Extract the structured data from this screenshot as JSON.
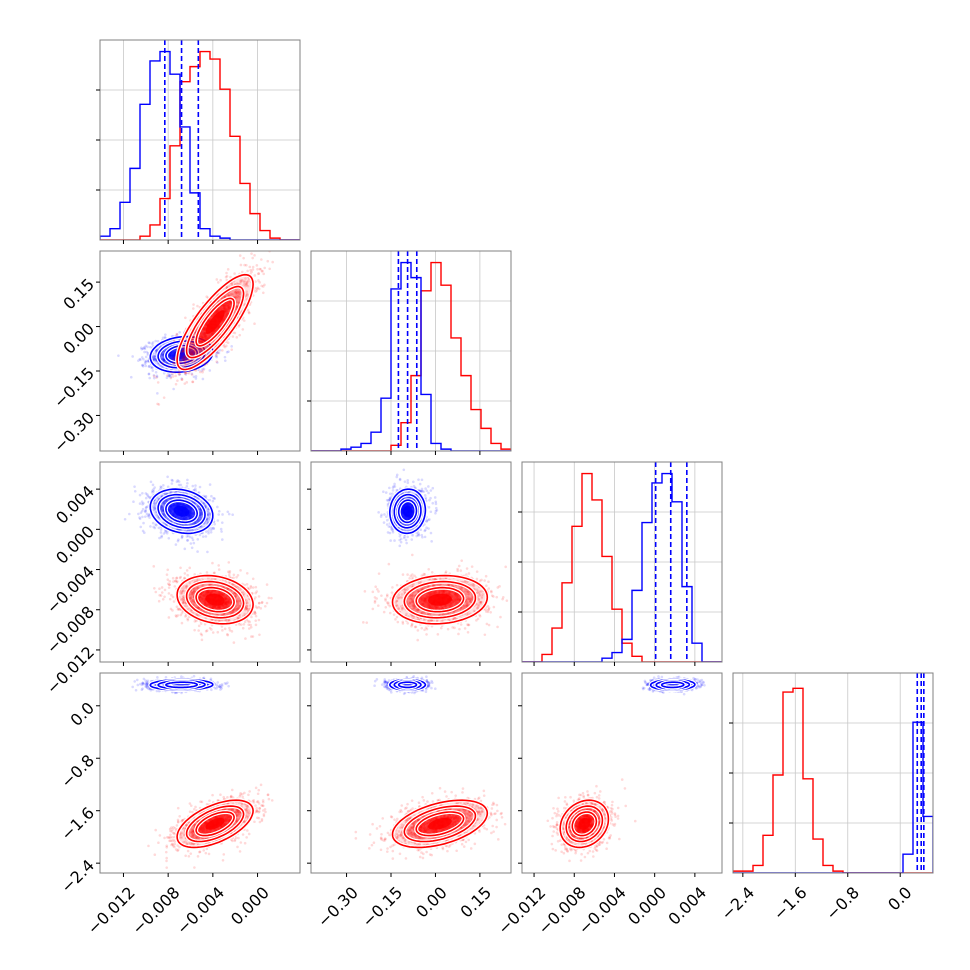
{
  "chart_data": {
    "type": "corner",
    "title": "",
    "grid": true,
    "colors": {
      "blue": "#0000ff",
      "red": "#ff0000"
    },
    "dimensions": [
      {
        "index": 0,
        "range": [
          -0.0141,
          0.0038
        ],
        "ticks": [
          -0.012,
          -0.008,
          -0.004,
          0.0
        ],
        "tick_labels": [
          "−0.012",
          "−0.008",
          "−0.004",
          "0.000"
        ]
      },
      {
        "index": 1,
        "range": [
          -0.42,
          0.255
        ],
        "ticks": [
          -0.3,
          -0.15,
          0.0,
          0.15
        ],
        "tick_labels": [
          "−0.30",
          "−0.15",
          "0.00",
          "0.15"
        ]
      },
      {
        "index": 2,
        "range": [
          -0.0132,
          0.0067
        ],
        "ticks": [
          -0.012,
          -0.008,
          -0.004,
          0.0,
          0.004
        ],
        "tick_labels": [
          "−0.012",
          "−0.008",
          "−0.004",
          "0.000",
          "0.004"
        ]
      },
      {
        "index": 3,
        "range": [
          -2.55,
          0.5
        ],
        "ticks": [
          -2.4,
          -1.6,
          -0.8,
          0.0
        ],
        "tick_labels": [
          "−2.4",
          "−1.6",
          "−0.8",
          "0.0"
        ]
      }
    ],
    "series": [
      {
        "color": "blue",
        "means": [
          -0.0068,
          -0.094,
          0.0018,
          0.32
        ],
        "stds": [
          0.0014,
          0.03,
          0.0011,
          0.04
        ],
        "quantiles": [
          [
            -0.0083,
            -0.0068,
            -0.0053
          ],
          [
            -0.125,
            -0.094,
            -0.063
          ],
          [
            0.0001,
            0.0016,
            0.0032
          ],
          [
            0.26,
            0.32,
            0.36
          ]
        ],
        "corr": {
          "0-1": 0.15,
          "0-2": -0.2,
          "0-3": 0.05,
          "1-2": 0.05,
          "1-3": 0.0,
          "2-3": 0.05
        }
      },
      {
        "color": "red",
        "means": [
          -0.0038,
          0.015,
          -0.007,
          -1.8
        ],
        "stds": [
          0.0017,
          0.08,
          0.0012,
          0.18
        ],
        "corr": {
          "0-1": 0.8,
          "0-2": -0.2,
          "0-3": 0.55,
          "1-2": 0.1,
          "1-3": 0.45,
          "2-3": 0.2
        }
      }
    ],
    "histograms": {
      "0": {
        "bins": 20,
        "blue": [
          2,
          6,
          20,
          38,
          72,
          95,
          100,
          88,
          60,
          25,
          6,
          2,
          1,
          0,
          0,
          0,
          0,
          0,
          0,
          0
        ],
        "red": [
          0,
          0,
          0,
          0,
          2,
          8,
          22,
          50,
          84,
          92,
          100,
          96,
          80,
          55,
          30,
          14,
          5,
          1,
          0,
          0
        ]
      },
      "1": {
        "bins": 20,
        "blue": [
          0,
          0,
          0,
          1,
          2,
          4,
          10,
          28,
          86,
          100,
          92,
          30,
          4,
          1,
          0,
          0,
          0,
          0,
          0,
          0
        ],
        "red": [
          0,
          0,
          0,
          0,
          0,
          0,
          0,
          0,
          3,
          15,
          40,
          85,
          100,
          88,
          60,
          40,
          22,
          12,
          4,
          1
        ]
      },
      "2": {
        "bins": 20,
        "blue": [
          0,
          0,
          0,
          0,
          0,
          0,
          0,
          0,
          2,
          5,
          12,
          38,
          74,
          95,
          100,
          85,
          40,
          10,
          0,
          0
        ],
        "red": [
          0,
          0,
          4,
          18,
          42,
          72,
          100,
          86,
          56,
          28,
          10,
          3,
          0,
          0,
          0,
          0,
          0,
          0,
          0,
          0
        ]
      },
      "3": {
        "bins": 20,
        "blue": [
          0,
          0,
          0,
          0,
          0,
          0,
          0,
          0,
          0,
          0,
          0,
          0,
          0,
          0,
          0,
          0,
          0,
          10,
          80,
          30
        ],
        "red": [
          1,
          1,
          4,
          20,
          52,
          96,
          98,
          50,
          18,
          4,
          1,
          0,
          0,
          0,
          0,
          0,
          0,
          0,
          0,
          0
        ]
      }
    }
  }
}
